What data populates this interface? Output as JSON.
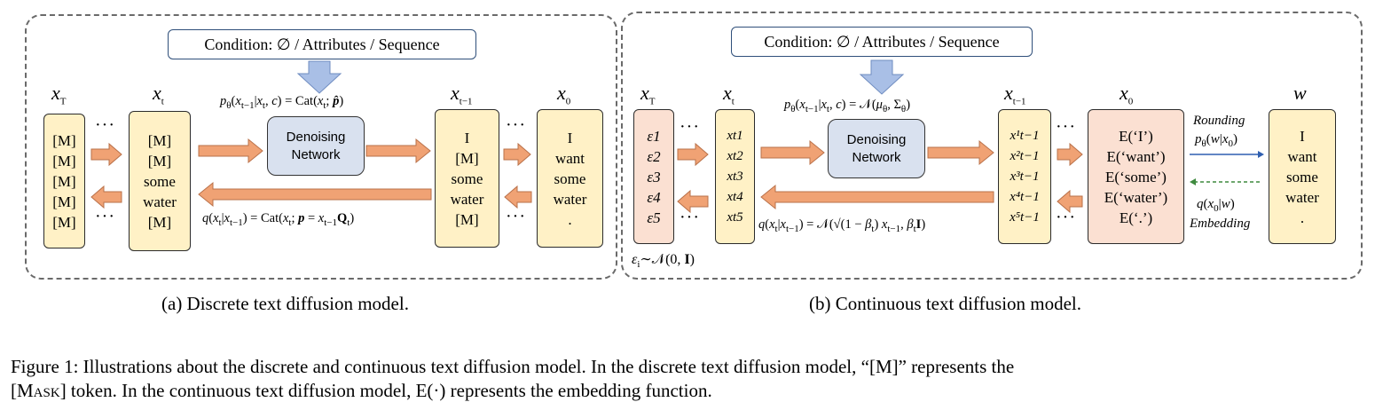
{
  "panel_a": {
    "condition": "Condition: ∅ / Attributes / Sequence",
    "label_xT": "x",
    "label_xT_sub": "T",
    "label_xt": "x",
    "label_xt_sub": "t",
    "label_xt1": "x",
    "label_xt1_sub": "t−1",
    "label_x0": "x",
    "label_x0_sub": "0",
    "col_xT": [
      "[M]",
      "[M]",
      "[M]",
      "[M]",
      "[M]"
    ],
    "col_xt": [
      "[M]",
      "[M]",
      "some",
      "water",
      "[M]"
    ],
    "col_xt1": [
      "I",
      "[M]",
      "some",
      "water",
      "[M]"
    ],
    "col_x0": [
      "I",
      "want",
      "some",
      "water",
      "."
    ],
    "denoise": [
      "Denoising",
      "Network"
    ],
    "formula_top": "pθ(xt−1|xt, c) = Cat(xt; p̂)",
    "formula_bottom": "q(xt|xt−1) = Cat(xt; p = xt−1Qt)",
    "caption": "(a)  Discrete text diffusion model."
  },
  "panel_b": {
    "condition": "Condition: ∅ / Attributes / Sequence",
    "label_xT": "x",
    "label_xT_sub": "T",
    "label_xt": "x",
    "label_xt_sub": "t",
    "label_xt1": "x",
    "label_xt1_sub": "t−1",
    "label_x0": "x",
    "label_x0_sub": "0",
    "label_w": "w",
    "col_eps": [
      "ε1",
      "ε2",
      "ε3",
      "ε4",
      "ε5"
    ],
    "col_xt": [
      "xt1",
      "xt2",
      "xt3",
      "xt4",
      "xt5"
    ],
    "col_xt1": [
      "x¹t−1",
      "x²t−1",
      "x³t−1",
      "x⁴t−1",
      "x⁵t−1"
    ],
    "col_x0": [
      "E(‘I’)",
      "E(‘want’)",
      "E(‘some’)",
      "E(‘water’)",
      "E(‘.’)"
    ],
    "col_w": [
      "I",
      "want",
      "some",
      "water",
      "."
    ],
    "denoise": [
      "Denoising",
      "Network"
    ],
    "formula_top": "pθ(xt−1|xt, c) = 𝒩(μθ, Σθ)",
    "formula_bottom": "q(xt|xt−1) = 𝒩(√(1 − βt) xt−1, βtI)",
    "noise": "εi∼𝒩(0, I)",
    "rounding": "Rounding",
    "rounding_formula": "pθ(w|x0)",
    "embedding": "Embedding",
    "embedding_formula": "q(x0|w)",
    "caption": "(b)  Continuous text diffusion model."
  },
  "figure_caption": {
    "line1": "Figure 1: Illustrations about the discrete and continuous text diffusion model. In the discrete text diffusion model, “[M]” represents the",
    "line2_pre": "[",
    "line2_sc": "Mask",
    "line2_post": "] token. In the continuous text diffusion model, E(·) represents the embedding function."
  },
  "colors": {
    "arrow_orange": "#f0a274",
    "arrow_blue": "#a9bfe6",
    "box_yellow": "#fff1c6",
    "box_peach": "#fbe0d2",
    "denoise_blue": "#d9e1ef"
  }
}
